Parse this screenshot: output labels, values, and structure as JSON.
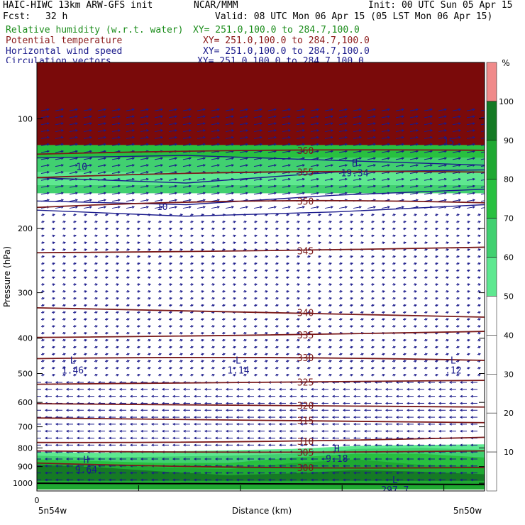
{
  "header": {
    "model": "HAIC-HIWC 13km ARW-GFS init",
    "org": "NCAR/MMM",
    "init": "Init: 00 UTC Sun 05 Apr 15",
    "fcst_label": "Fcst:",
    "fcst_value": "32 h",
    "valid": "Valid: 08 UTC Mon 06 Apr 15 (05 LST Mon 06 Apr 15)",
    "fields": [
      {
        "name": "Relative humidity (w.r.t. water)",
        "xy": "XY= 251.0,100.0 to 284.7,100.0",
        "color": "#1a8c1a"
      },
      {
        "name": "Potential temperature",
        "xy": "XY= 251.0,100.0 to 284.7,100.0",
        "color": "#8b1a1a"
      },
      {
        "name": "Horizontal wind speed",
        "xy": "XY= 251.0,100.0 to 284.7,100.0",
        "color": "#1a1a8b"
      },
      {
        "name": "Circulation vectors",
        "xy": "XY= 251.0,100.0 to 284.7,100.0",
        "color": "#1a1a8b"
      }
    ]
  },
  "chart_data": {
    "type": "cross-section",
    "ylabel": "Pressure (hPa)",
    "xlabel": "Distance (km)",
    "y_scale": "log",
    "ylim": [
      1050,
      70
    ],
    "yticks": [
      100,
      200,
      300,
      400,
      500,
      600,
      700,
      800,
      900,
      1000
    ],
    "x_ticks": [
      "0"
    ],
    "x_endpoints": {
      "left": "5n54w",
      "right": "5n50w"
    },
    "colorbar": {
      "unit": "%",
      "labels": [
        "10",
        "20",
        "30",
        "40",
        "50",
        "60",
        "70",
        "80",
        "90",
        "100"
      ],
      "bins": [
        {
          "from": 50,
          "to": 60,
          "color": "#5ee890"
        },
        {
          "from": 60,
          "to": 70,
          "color": "#41d070"
        },
        {
          "from": 70,
          "to": 80,
          "color": "#28c040"
        },
        {
          "from": 80,
          "to": 90,
          "color": "#1fa832"
        },
        {
          "from": 90,
          "to": 100,
          "color": "#157a25"
        },
        {
          "from": 100,
          "to": 110,
          "color": "#f08a8a"
        }
      ]
    },
    "theta_contours": [
      {
        "label": "300",
        "left": 880,
        "mid": 905,
        "right": 905
      },
      {
        "label": "305",
        "left": 815,
        "mid": 822,
        "right": 815
      },
      {
        "label": "310",
        "left": 773,
        "mid": 768,
        "right": 748
      },
      {
        "label": "315",
        "left": 662,
        "mid": 672,
        "right": 682
      },
      {
        "label": "320",
        "left": 605,
        "mid": 612,
        "right": 618
      },
      {
        "label": "325",
        "left": 535,
        "mid": 528,
        "right": 522
      },
      {
        "label": "330",
        "left": 455,
        "mid": 452,
        "right": 460
      },
      {
        "label": "335",
        "left": 398,
        "mid": 392,
        "right": 383
      },
      {
        "label": "340",
        "left": 330,
        "mid": 340,
        "right": 350
      },
      {
        "label": "345",
        "left": 233,
        "mid": 230,
        "right": 225
      },
      {
        "label": "350",
        "left": 175,
        "mid": 168,
        "right": 170
      },
      {
        "label": "355",
        "left": 145,
        "mid": 140,
        "right": 140
      },
      {
        "label": "360",
        "left": 125,
        "mid": 122,
        "right": 122
      }
    ],
    "annotations": [
      {
        "mark": "L",
        "value": "1.46",
        "x": 0.08,
        "p": 470
      },
      {
        "mark": "L",
        "value": "1.14",
        "x": 0.45,
        "p": 470
      },
      {
        "mark": "L",
        "value": ".12",
        "x": 0.93,
        "p": 470
      },
      {
        "mark": "H",
        "value": "9.64",
        "x": 0.11,
        "p": 880
      },
      {
        "mark": "H",
        "value": "9.18",
        "x": 0.67,
        "p": 820
      },
      {
        "mark": "H",
        "value": "19.34",
        "x": 0.71,
        "p": 135
      },
      {
        "mark": "L",
        "value": "297.7",
        "x": 0.8,
        "p": 1000
      }
    ],
    "speed_labels": [
      "10",
      "15",
      "10"
    ]
  }
}
